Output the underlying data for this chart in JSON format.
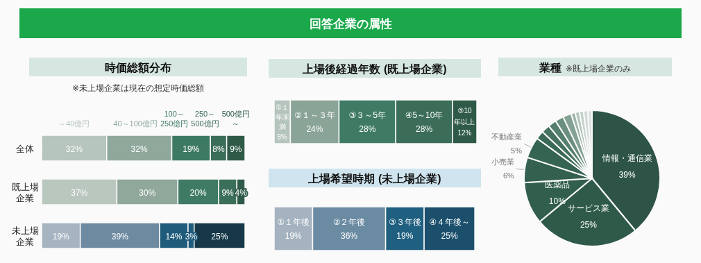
{
  "chart_data": [
    {
      "type": "bar",
      "orientation": "horizontal",
      "stacked": true,
      "title": "時価総額分布",
      "subtitle": "※未上場企業は現在の想定時価総額",
      "annotations": [
        "回答企業の属性"
      ],
      "categories": [
        "全体",
        "既上場企業",
        "未上場企業"
      ],
      "xlim": [
        0,
        100
      ],
      "series": [
        {
          "name": "～40億円",
          "colors": [
            "#b6c5bd",
            "#b9c7bf",
            "#a6b4c2"
          ],
          "values": [
            32,
            37,
            19
          ],
          "value_labels": [
            "32%",
            "37%",
            "19%"
          ]
        },
        {
          "name": "40～100億円",
          "colors": [
            "#8fa89b",
            "#90a89b",
            "#6d8aa0"
          ],
          "values": [
            32,
            30,
            39
          ],
          "value_labels": [
            "32%",
            "30%",
            "39%"
          ]
        },
        {
          "name": "100～250億円",
          "colors": [
            "#3e7a63",
            "#3f7b64",
            "#1f5b7a"
          ],
          "values": [
            19,
            20,
            14
          ],
          "value_labels": [
            "19%",
            "20%",
            "14%"
          ]
        },
        {
          "name": "250～500億円",
          "colors": [
            "#3b6d58",
            "#3c6f5a",
            "#1f5b7a"
          ],
          "values": [
            8,
            9,
            3
          ],
          "value_labels": [
            "8%",
            "9%",
            "3%"
          ]
        },
        {
          "name": "500億円～",
          "colors": [
            "#2f5a48",
            "#2f5a48",
            "#163848"
          ],
          "values": [
            9,
            4,
            25
          ],
          "value_labels": [
            "9%",
            "4%",
            "25%"
          ]
        }
      ]
    },
    {
      "type": "bar",
      "orientation": "horizontal",
      "stacked": true,
      "title": "上場後経過年数 (既上場企業)",
      "categories": [
        null
      ],
      "xlim": [
        0,
        100
      ],
      "series": [
        {
          "name": "①１年未満",
          "color": "#b5c4bc",
          "values": [
            8
          ],
          "value_labels": [
            "8%"
          ]
        },
        {
          "name": "②１～３年",
          "color": "#8aa497",
          "values": [
            24
          ],
          "value_labels": [
            "24%"
          ]
        },
        {
          "name": "③３～5年",
          "color": "#3f7b64",
          "values": [
            28
          ],
          "value_labels": [
            "28%"
          ]
        },
        {
          "name": "④5～10年",
          "color": "#3b6d58",
          "values": [
            28
          ],
          "value_labels": [
            "28%"
          ]
        },
        {
          "name": "⑤10年以上",
          "color": "#2f5a48",
          "values": [
            12
          ],
          "value_labels": [
            "12%"
          ]
        }
      ]
    },
    {
      "type": "bar",
      "orientation": "horizontal",
      "stacked": true,
      "title": "上場希望時期 (未上場企業)",
      "categories": [
        null
      ],
      "xlim": [
        0,
        100
      ],
      "series": [
        {
          "name": "①１年後",
          "color": "#a5b3c0",
          "values": [
            19
          ],
          "value_labels": [
            "19%"
          ]
        },
        {
          "name": "②２年後",
          "color": "#6b8ba2",
          "values": [
            36
          ],
          "value_labels": [
            "36%"
          ]
        },
        {
          "name": "③３年後",
          "color": "#1f5f80",
          "values": [
            19
          ],
          "value_labels": [
            "19%"
          ]
        },
        {
          "name": "④４年後～",
          "color": "#1b4f6c",
          "values": [
            25
          ],
          "value_labels": [
            "25%"
          ]
        }
      ]
    },
    {
      "type": "pie",
      "title": "業種",
      "subtitle": "※既上場企業のみ",
      "categories": [
        "情報・通信業",
        "サービス業",
        "医薬品",
        "小売業",
        "不動産業",
        null,
        null,
        null,
        null,
        null,
        null,
        null,
        null,
        null,
        null
      ],
      "values": [
        39,
        25,
        10,
        6,
        5,
        2,
        2,
        2,
        2,
        2,
        1,
        1,
        1,
        1,
        1
      ],
      "value_labels": [
        "39%",
        "25%",
        "10%",
        "6%",
        "5%",
        null,
        null,
        null,
        null,
        null,
        null,
        null,
        null,
        null,
        null
      ],
      "colors": [
        "#2d5446",
        "#2f5a4a",
        "#315e4d",
        "#33604f",
        "#356452",
        "#3a6a57",
        "#45725f",
        "#557f6d",
        "#6a8f7e",
        "#83a293",
        "#9db5a9",
        "#b3c5bc",
        "#c4d2cb",
        "#d0dbd5",
        "#dbe3df"
      ]
    }
  ]
}
